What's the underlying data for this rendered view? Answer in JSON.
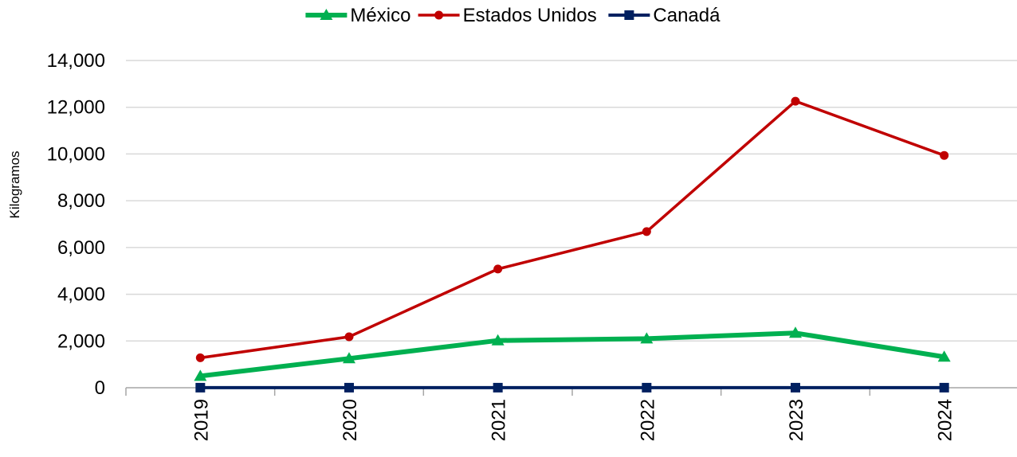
{
  "chart_data": {
    "type": "line",
    "title": "",
    "xlabel": "",
    "ylabel": "Kilogramos",
    "x": [
      "2019",
      "2020",
      "2021",
      "2022",
      "2023",
      "2024"
    ],
    "ylim": [
      0,
      14000
    ],
    "yticks": [
      0,
      2000,
      4000,
      6000,
      8000,
      10000,
      12000,
      14000
    ],
    "ytick_labels": [
      "0",
      "2,000",
      "4,000",
      "6,000",
      "8,000",
      "10,000",
      "12,000",
      "14,000"
    ],
    "grid": true,
    "legend_position": "top",
    "series": [
      {
        "name": "México",
        "color": "#00b050",
        "marker": "triangle",
        "values": [
          500,
          1250,
          2020,
          2100,
          2340,
          1320
        ]
      },
      {
        "name": "Estados Unidos",
        "color": "#c00000",
        "marker": "circle",
        "values": [
          1280,
          2180,
          5080,
          6680,
          12260,
          9940
        ]
      },
      {
        "name": "Canadá",
        "color": "#002060",
        "marker": "square",
        "values": [
          3,
          3,
          3,
          3,
          3,
          3
        ]
      }
    ]
  }
}
